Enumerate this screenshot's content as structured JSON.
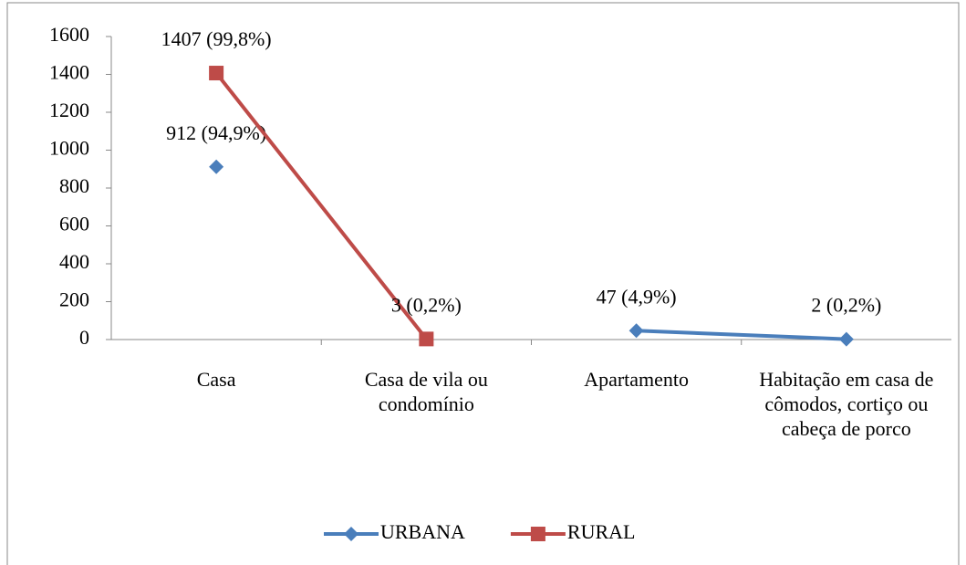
{
  "chart_data": {
    "type": "line",
    "categories": [
      "Casa",
      "Casa de vila ou condomínio",
      "Apartamento",
      "Habitação em casa de cômodos, cortiço ou cabeça de porco"
    ],
    "series": [
      {
        "name": "URBANA",
        "color": "#4a7ebb",
        "marker": "diamond",
        "values": [
          912,
          null,
          47,
          2
        ],
        "value_labels": [
          "912 (94,9%)",
          null,
          "47 (4,9%)",
          "2 (0,2%)"
        ]
      },
      {
        "name": "RURAL",
        "color": "#be4b48",
        "marker": "square",
        "values": [
          1407,
          3,
          null,
          null
        ],
        "value_labels": [
          "1407 (99,8%)",
          "3 (0,2%)",
          null,
          null
        ]
      }
    ],
    "ylim": [
      0,
      1600
    ],
    "yticks": [
      0,
      200,
      400,
      600,
      800,
      1000,
      1200,
      1400,
      1600
    ],
    "legend": "bottom"
  }
}
